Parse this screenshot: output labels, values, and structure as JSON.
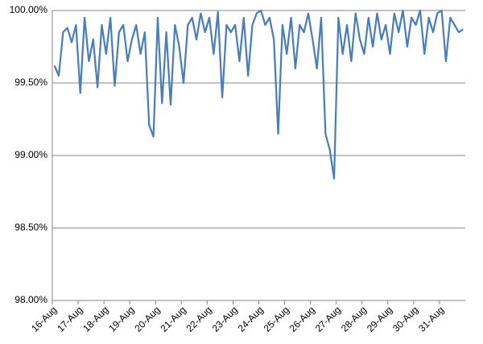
{
  "chart_data": {
    "type": "line",
    "color": "#4a7ebb",
    "categories": [
      "16-Aug",
      null,
      null,
      null,
      null,
      null,
      "17-Aug",
      null,
      null,
      null,
      null,
      null,
      "18-Aug",
      null,
      null,
      null,
      null,
      null,
      "19-Aug",
      null,
      null,
      null,
      null,
      null,
      "20-Aug",
      null,
      null,
      null,
      null,
      null,
      "21-Aug",
      null,
      null,
      null,
      null,
      null,
      "22-Aug",
      null,
      null,
      null,
      null,
      null,
      "23-Aug",
      null,
      null,
      null,
      null,
      null,
      "24-Aug",
      null,
      null,
      null,
      null,
      null,
      "25-Aug",
      null,
      null,
      null,
      null,
      null,
      "26-Aug",
      null,
      null,
      null,
      null,
      null,
      "27-Aug",
      null,
      null,
      null,
      null,
      null,
      "28-Aug",
      null,
      null,
      null,
      null,
      null,
      "29-Aug",
      null,
      null,
      null,
      null,
      null,
      "30-Aug",
      null,
      null,
      null,
      null,
      null,
      "31-Aug",
      null,
      null,
      null,
      null,
      null
    ],
    "values": [
      99.62,
      99.55,
      99.85,
      99.88,
      99.78,
      99.9,
      99.43,
      99.95,
      99.65,
      99.8,
      99.47,
      99.9,
      99.7,
      99.95,
      99.48,
      99.85,
      99.9,
      99.65,
      99.8,
      99.9,
      99.7,
      99.85,
      99.21,
      99.13,
      99.95,
      99.36,
      99.85,
      99.35,
      99.9,
      99.75,
      99.5,
      99.9,
      99.95,
      99.8,
      99.98,
      99.85,
      99.95,
      99.7,
      99.99,
      99.4,
      99.9,
      99.85,
      99.9,
      99.65,
      99.95,
      99.55,
      99.9,
      99.98,
      100,
      99.9,
      99.95,
      99.8,
      99.15,
      99.9,
      99.7,
      99.95,
      99.6,
      99.9,
      99.85,
      99.98,
      99.8,
      99.6,
      99.95,
      99.15,
      99.04,
      98.84,
      99.95,
      99.7,
      99.9,
      99.65,
      99.98,
      99.8,
      99.7,
      99.95,
      99.75,
      99.98,
      99.8,
      99.9,
      99.7,
      99.98,
      99.85,
      100,
      99.75,
      99.95,
      99.9,
      100,
      99.7,
      99.95,
      99.85,
      99.98,
      100,
      99.65,
      99.95,
      99.9,
      99.85,
      99.87
    ],
    "ylim": [
      98,
      100
    ],
    "yticks": [
      {
        "value": 98,
        "label": "98.00%"
      },
      {
        "value": 98.5,
        "label": "98.50%"
      },
      {
        "value": 99,
        "label": "99.00%"
      },
      {
        "value": 99.5,
        "label": "99.50%"
      },
      {
        "value": 100,
        "label": "100.00%"
      }
    ],
    "grid": true
  }
}
